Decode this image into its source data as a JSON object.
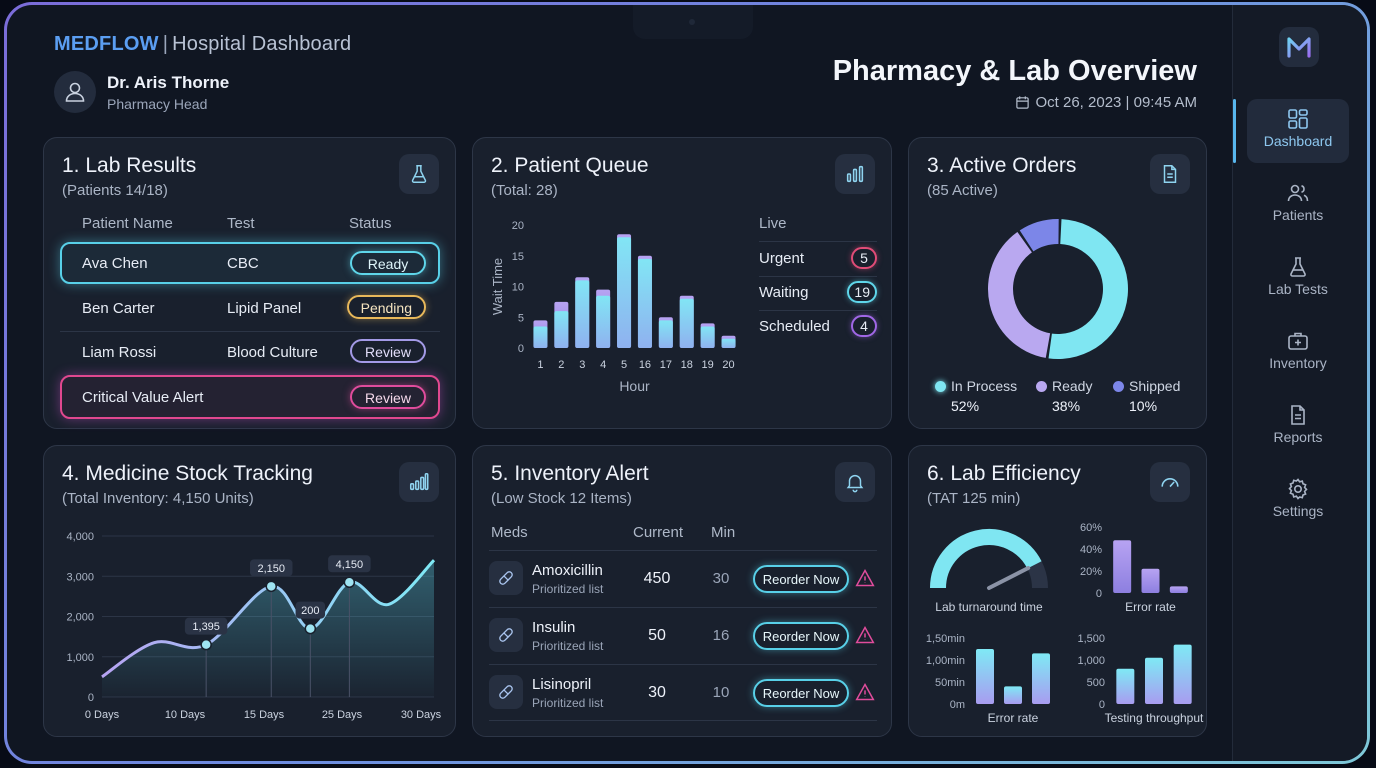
{
  "header": {
    "brand": "MEDFLOW",
    "brand_sep": "|",
    "brand_sub": "Hospital Dashboard",
    "user_name": "Dr. Aris Thorne",
    "user_role": "Pharmacy Head",
    "page_title": "Pharmacy & Lab Overview",
    "date": "Oct 26, 2023 | 09:45 AM"
  },
  "lab_results": {
    "title": "1. Lab Results",
    "subtitle": "(Patients 14/18)",
    "columns": [
      "Patient Name",
      "Test",
      "Status"
    ],
    "rows": [
      {
        "name": "Ava Chen",
        "test": "CBC",
        "status": "Ready"
      },
      {
        "name": "Ben Carter",
        "test": "Lipid Panel",
        "status": "Pending"
      },
      {
        "name": "Liam Rossi",
        "test": "Blood Culture",
        "status": "Review"
      },
      {
        "name": "Critical Value Alert",
        "test": "",
        "status": "Review"
      }
    ]
  },
  "patient_queue": {
    "title": "2. Patient Queue",
    "subtitle": "(Total: 28)",
    "live_label": "Live",
    "legend": [
      {
        "label": "Urgent",
        "count": "5",
        "color": "#e04c77"
      },
      {
        "label": "Waiting",
        "count": "19",
        "color": "#5fd6ea"
      },
      {
        "label": "Scheduled",
        "count": "4",
        "color": "#a067e6"
      }
    ]
  },
  "active_orders": {
    "title": "3. Active Orders",
    "subtitle": "(85 Active)",
    "legend": [
      {
        "label": "In Process",
        "pct": "52%",
        "color": "#7fe6f2"
      },
      {
        "label": "Ready",
        "pct": "38%",
        "color": "#b9a8f0"
      },
      {
        "label": "Shipped",
        "pct": "10%",
        "color": "#7c86e8"
      }
    ]
  },
  "stock": {
    "title": "4. Medicine Stock Tracking",
    "subtitle": "(Total Inventory: 4,150 Units)"
  },
  "inventory": {
    "title": "5. Inventory Alert",
    "subtitle": "(Low Stock 12 Items)",
    "columns": [
      "Meds",
      "Current",
      "Min"
    ],
    "rows": [
      {
        "name": "Amoxicillin",
        "note": "Prioritized list",
        "current": "450",
        "min": "30",
        "action": "Reorder Now"
      },
      {
        "name": "Insulin",
        "note": "Prioritized list",
        "current": "50",
        "min": "16",
        "action": "Reorder Now"
      },
      {
        "name": "Lisinopril",
        "note": "Prioritized list",
        "current": "30",
        "min": "10",
        "action": "Reorder Now"
      }
    ]
  },
  "efficiency": {
    "title": "6. Lab Efficiency",
    "subtitle": "(TAT 125 min)"
  },
  "sidebar": {
    "items": [
      {
        "label": "Dashboard"
      },
      {
        "label": "Patients"
      },
      {
        "label": "Lab Tests"
      },
      {
        "label": "Inventory"
      },
      {
        "label": "Reports"
      },
      {
        "label": "Settings"
      }
    ]
  },
  "chart_data": [
    {
      "id": "patient-queue",
      "type": "bar",
      "xlabel": "Hour",
      "ylabel": "Wait Time",
      "categories": [
        "1",
        "2",
        "3",
        "4",
        "5",
        "16",
        "17",
        "18",
        "19",
        "20"
      ],
      "series": [
        {
          "values": [
            3.5,
            6,
            11,
            8.5,
            18,
            14.5,
            4.5,
            8,
            3.5,
            1.5
          ]
        },
        {
          "values": [
            4.5,
            7.5,
            11.5,
            9.5,
            18.5,
            15,
            5,
            8.5,
            4,
            2
          ]
        }
      ],
      "ylim": [
        0,
        20
      ],
      "yticks": [
        "0",
        "5",
        "10",
        "15",
        "20"
      ]
    },
    {
      "id": "active-orders",
      "type": "pie",
      "labels": [
        "In Process",
        "Ready",
        "Shipped"
      ],
      "values": [
        52,
        38,
        10
      ]
    },
    {
      "id": "stock-tracking",
      "type": "area",
      "x_labels": [
        "0 Days",
        "10 Days",
        "15 Days",
        "25 Days",
        "30 Days"
      ],
      "yticks": [
        "0",
        "1,000",
        "2,000",
        "3,000",
        "4,000"
      ],
      "ylim": [
        0,
        4000
      ],
      "points": [
        [
          0,
          500
        ],
        [
          4,
          1350
        ],
        [
          8,
          1300
        ],
        [
          13,
          2750
        ],
        [
          16,
          1700
        ],
        [
          19,
          2850
        ],
        [
          22,
          2300
        ],
        [
          25.5,
          3400
        ]
      ],
      "annotations": [
        {
          "x": 8,
          "y": 1300,
          "label": "1,395"
        },
        {
          "x": 13,
          "y": 2750,
          "label": "2,150"
        },
        {
          "x": 16,
          "y": 1700,
          "label": "200"
        },
        {
          "x": 19,
          "y": 2850,
          "label": "4,150"
        }
      ]
    },
    {
      "id": "lab-turnaround",
      "type": "gauge",
      "label": "Lab turnaround time",
      "value": 0.85
    },
    {
      "id": "error-rate-1",
      "type": "bar",
      "xlabel": "Error rate",
      "yticks": [
        "0",
        "20%",
        "40%",
        "60%"
      ],
      "ylim": [
        0,
        60
      ],
      "values": [
        48,
        22,
        6
      ]
    },
    {
      "id": "error-rate-2",
      "type": "bar",
      "xlabel": "Error rate",
      "yticks": [
        "0m",
        "50min",
        "1,00min",
        "1,50min"
      ],
      "ylim": [
        0,
        150
      ],
      "values": [
        125,
        40,
        115
      ]
    },
    {
      "id": "testing-throughput",
      "type": "bar",
      "xlabel": "Testing throughput",
      "yticks": [
        "0",
        "500",
        "1,000",
        "1,500"
      ],
      "ylim": [
        0,
        1500
      ],
      "values": [
        800,
        1050,
        1350
      ]
    }
  ]
}
